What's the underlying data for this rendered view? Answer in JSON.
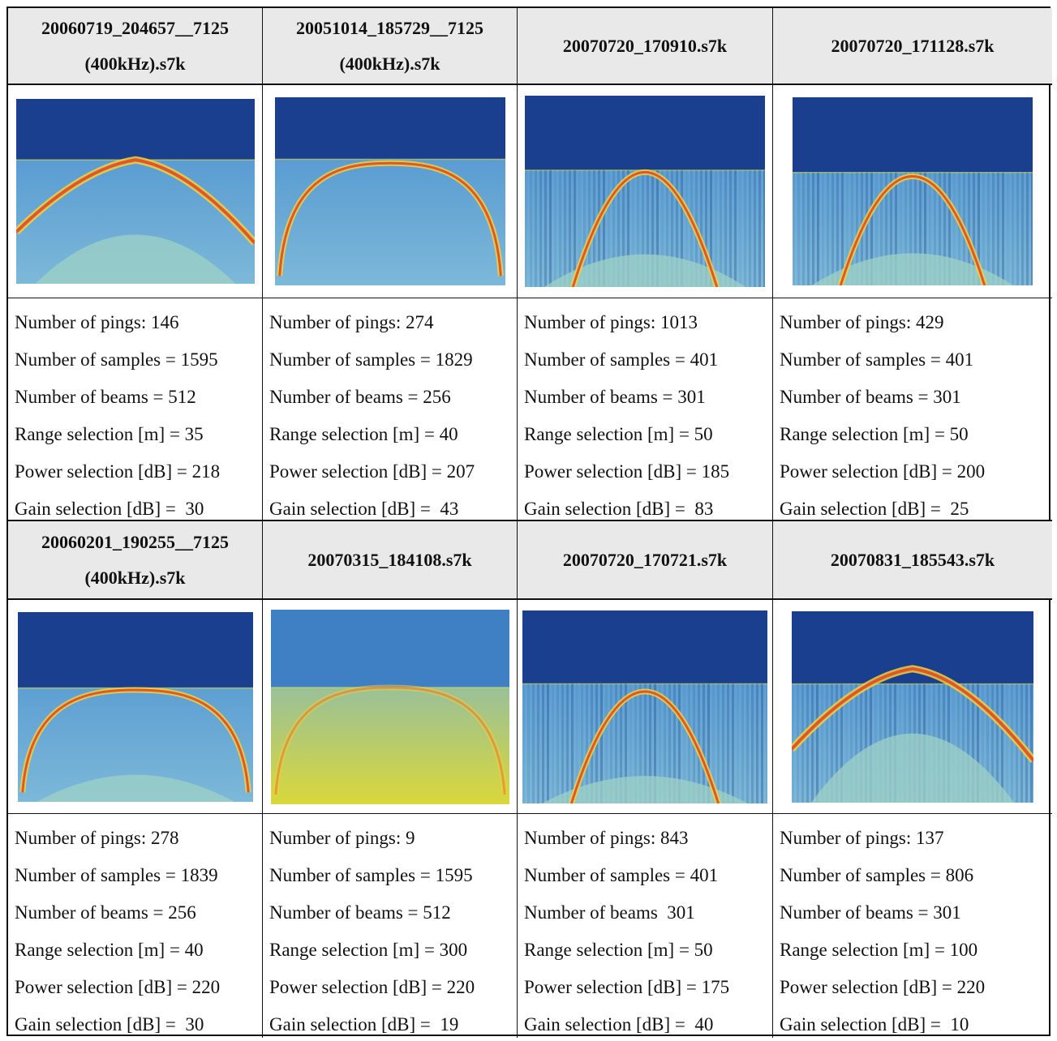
{
  "files": [
    {
      "title": "20060719_204657__7125\n(400kHz).s7k",
      "pings": "Number of pings: 146",
      "samples": "Number of samples = 1595",
      "beams": "Number of beams = 512",
      "range": "Range selection [m] = 35",
      "power": "Power selection [dB] = 218",
      "gain": "Gain selection [dB] =  30"
    },
    {
      "title": "20051014_185729__7125\n(400kHz).s7k",
      "pings": "Number of pings: 274",
      "samples": "Number of samples = 1829",
      "beams": "Number of beams = 256",
      "range": "Range selection [m] = 40",
      "power": "Power selection [dB] = 207",
      "gain": "Gain selection [dB] =  43"
    },
    {
      "title": "20070720_170910.s7k",
      "pings": "Number of pings: 1013",
      "samples": "Number of samples = 401",
      "beams": "Number of beams = 301",
      "range": "Range selection [m] = 50",
      "power": "Power selection [dB] = 185",
      "gain": "Gain selection [dB] =  83"
    },
    {
      "title": "20070720_171128.s7k",
      "pings": "Number of pings: 429",
      "samples": "Number of samples = 401",
      "beams": "Number of beams = 301",
      "range": "Range selection [m] = 50",
      "power": "Power selection [dB] = 200",
      "gain": "Gain selection [dB] =  25"
    },
    {
      "title": "20060201_190255__7125\n(400kHz).s7k",
      "pings": "Number of pings: 278",
      "samples": "Number of samples = 1839",
      "beams": "Number of beams = 256",
      "range": "Range selection [m] = 40",
      "power": "Power selection [dB] = 220",
      "gain": "Gain selection [dB] =  30"
    },
    {
      "title": "20070315_184108.s7k",
      "pings": "Number of pings: 9",
      "samples": "Number of samples = 1595",
      "beams": "Number of beams = 512",
      "range": "Range selection [m] = 300",
      "power": "Power selection [dB] = 220",
      "gain": "Gain selection [dB] =  19"
    },
    {
      "title": "20070720_170721.s7k",
      "pings": "Number of pings: 843",
      "samples": "Number of samples = 401",
      "beams": "Number of beams  301",
      "range": "Range selection [m] = 50",
      "power": "Power selection [dB] = 175",
      "gain": "Gain selection [dB] =  40"
    },
    {
      "title": "20070831_185543.s7k",
      "pings": "Number of pings: 137",
      "samples": "Number of samples = 806",
      "beams": "Number of beams = 301",
      "range": "Range selection [m] = 100",
      "power": "Power selection [dB] = 220",
      "gain": "Gain selection [dB] =  10"
    }
  ],
  "colors": {
    "water_column": "#1b3f8f",
    "seabed_background": "#4a8fd0",
    "seabed_bright": "#d9d83a",
    "bottom_return": "#e0502a",
    "header_bg": "#e9e9e9"
  }
}
